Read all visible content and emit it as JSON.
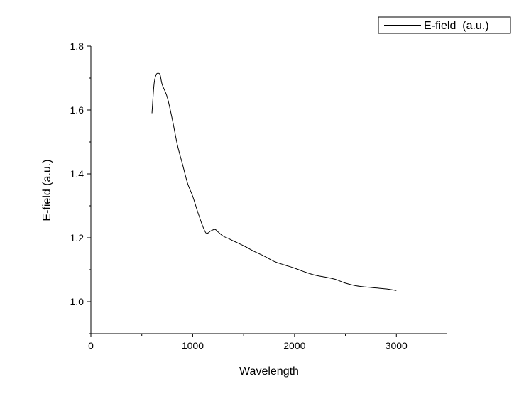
{
  "chart_data": {
    "type": "line",
    "xlabel": "Wavelength",
    "ylabel": "E-field  (a.u.)",
    "xlim": [
      0,
      3500
    ],
    "ylim": [
      0.9,
      1.8
    ],
    "xticks": [
      0,
      1000,
      2000,
      3000
    ],
    "xtick_labels": [
      "0",
      "1000",
      "2000",
      "3000"
    ],
    "yticks": [
      1.0,
      1.2,
      1.4,
      1.6,
      1.8
    ],
    "ytick_labels": [
      "1.0",
      "1.2",
      "1.4",
      "1.6",
      "1.8"
    ],
    "legend_position": "top-right",
    "grid": false,
    "series": [
      {
        "name": "E-field  (a.u.)",
        "color": "#000000",
        "x": [
          600,
          620,
          640,
          660,
          680,
          700,
          750,
          800,
          850,
          900,
          950,
          1000,
          1050,
          1100,
          1130,
          1150,
          1180,
          1220,
          1250,
          1300,
          1350,
          1400,
          1500,
          1600,
          1700,
          1800,
          1900,
          2000,
          2100,
          2200,
          2300,
          2400,
          2500,
          2600,
          2700,
          2800,
          2900,
          3000
        ],
        "y": [
          1.59,
          1.68,
          1.71,
          1.715,
          1.71,
          1.68,
          1.64,
          1.57,
          1.49,
          1.43,
          1.37,
          1.33,
          1.28,
          1.235,
          1.215,
          1.215,
          1.222,
          1.226,
          1.218,
          1.205,
          1.198,
          1.19,
          1.175,
          1.158,
          1.143,
          1.126,
          1.115,
          1.105,
          1.093,
          1.083,
          1.077,
          1.07,
          1.058,
          1.05,
          1.046,
          1.043,
          1.04,
          1.035
        ]
      }
    ]
  }
}
